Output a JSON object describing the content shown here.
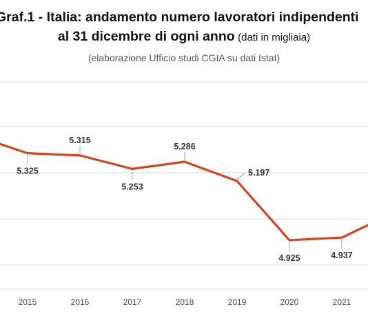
{
  "chart_data": {
    "type": "line",
    "title": "Graf.1 - Italia: andamento numero lavoratori indipendenti",
    "title_line2": "al 31 dicembre di ogni anno",
    "title_note": "(dati in migliaia)",
    "subtitle": "(elaborazione Ufficio studi CGIA su dati Istat)",
    "x": [
      "2015",
      "2016",
      "2017",
      "2018",
      "2019",
      "2020",
      "2021"
    ],
    "series": [
      {
        "values": [
          5.325,
          5.315,
          5.253,
          5.286,
          5.197,
          4.925,
          4.937
        ],
        "labels": [
          "5.325",
          "5.315",
          "5.253",
          "5.286",
          "5.197",
          "4.925",
          "4.937"
        ],
        "color": "#d9411e"
      }
    ],
    "start_value": 5.41,
    "end_value": 4.995,
    "ylim": [
      4.7,
      5.65
    ],
    "grid": true,
    "gridline_color": "#d9d9d9"
  }
}
